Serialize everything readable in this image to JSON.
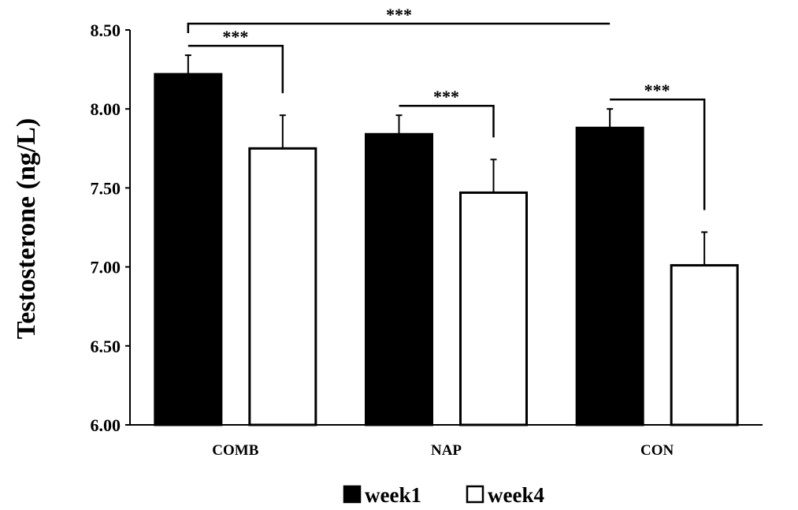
{
  "chart_data": {
    "type": "bar",
    "ylabel": "Testosterone (ng/L)",
    "ylim": [
      6.0,
      8.5
    ],
    "yticks": [
      "6.00",
      "6.50",
      "7.00",
      "7.50",
      "8.00",
      "8.50"
    ],
    "categories": [
      "COMB",
      "NAP",
      "CON"
    ],
    "series": [
      {
        "name": "week1",
        "values": [
          8.22,
          7.84,
          7.88
        ],
        "errors": [
          0.12,
          0.12,
          0.12
        ],
        "color": "#000000"
      },
      {
        "name": "week4",
        "values": [
          7.75,
          7.47,
          7.01
        ],
        "errors": [
          0.21,
          0.21,
          0.21
        ],
        "color": "#ffffff"
      }
    ],
    "grid": false,
    "legend_position": "bottom",
    "significance": [
      {
        "label": "***",
        "from_category": 0,
        "to_category": 0,
        "from_series": 0,
        "to_series": 1
      },
      {
        "label": "***",
        "from_category": 1,
        "to_category": 1,
        "from_series": 0,
        "to_series": 1
      },
      {
        "label": "***",
        "from_category": 2,
        "to_category": 2,
        "from_series": 0,
        "to_series": 1
      },
      {
        "label": "***",
        "from_category": 0,
        "to_category": 2,
        "from_series": 0,
        "to_series": 0
      }
    ]
  }
}
